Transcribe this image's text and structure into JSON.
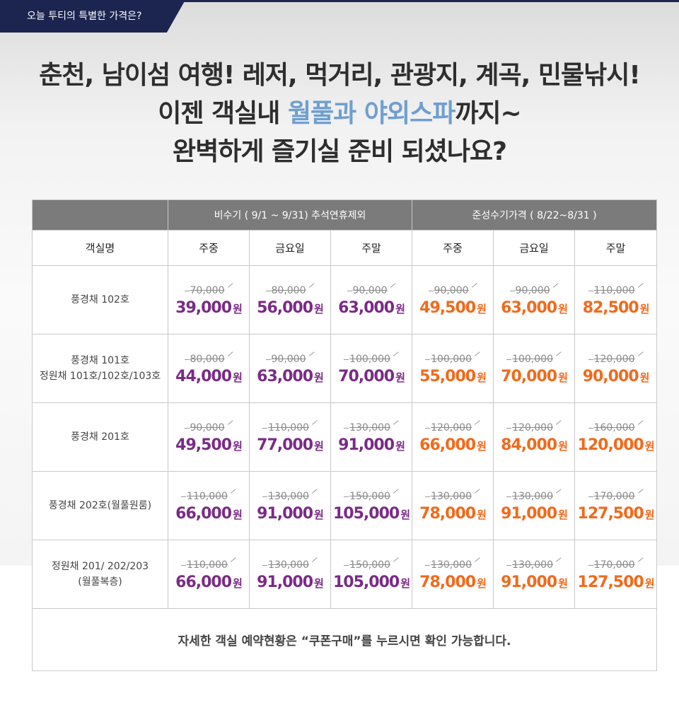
{
  "tag": {
    "label": "오늘 투티의 특별한 가격은?"
  },
  "headline": {
    "line1": "춘천, 남이섬 여행! 레저, 먹거리, 관광지, 계곡, 민물낚시!",
    "line2_pre": "이젠 객실내 ",
    "line2_highlight": "월풀과 야외스파",
    "line2_post": "까지~",
    "line3": "완벽하게 즐기실 준비 되셨나요?"
  },
  "colors": {
    "navy": "#1b2550",
    "highlight": "#6f9fd0",
    "offseason": "#7a2b86",
    "semiseason": "#f16a1c",
    "header_bg": "#7b7b7b"
  },
  "table": {
    "group_headers": [
      "비수기 ( 9/1 ~ 9/31) 추석연휴제외",
      "준성수기가격 ( 8/22~8/31 )"
    ],
    "columns": [
      "객실명",
      "주중",
      "금요일",
      "주말",
      "주중",
      "금요일",
      "주말"
    ],
    "won": "원",
    "rows": [
      {
        "room": [
          "풍경채 102호"
        ],
        "old": [
          "70,000",
          "80,000",
          "90,000",
          "90,000",
          "90,000",
          "110,000"
        ],
        "new": [
          "39,000",
          "56,000",
          "63,000",
          "49,500",
          "63,000",
          "82,500"
        ]
      },
      {
        "room": [
          "풍경채 101호",
          "정원채 101호/102호/103호"
        ],
        "old": [
          "80,000",
          "90,000",
          "100,000",
          "100,000",
          "100,000",
          "120,000"
        ],
        "new": [
          "44,000",
          "63,000",
          "70,000",
          "55,000",
          "70,000",
          "90,000"
        ]
      },
      {
        "room": [
          "풍경채 201호"
        ],
        "old": [
          "90,000",
          "110,000",
          "130,000",
          "120,000",
          "120,000",
          "160,000"
        ],
        "new": [
          "49,500",
          "77,000",
          "91,000",
          "66,000",
          "84,000",
          "120,000"
        ]
      },
      {
        "room": [
          "풍경채 202호(월풀원룸)"
        ],
        "old": [
          "110,000",
          "130,000",
          "150,000",
          "130,000",
          "130,000",
          "170,000"
        ],
        "new": [
          "66,000",
          "91,000",
          "105,000",
          "78,000",
          "91,000",
          "127,500"
        ]
      },
      {
        "room": [
          "정원채 201/ 202/203",
          "(월풀복층)"
        ],
        "old": [
          "110,000",
          "130,000",
          "150,000",
          "130,000",
          "130,000",
          "170,000"
        ],
        "new": [
          "66,000",
          "91,000",
          "105,000",
          "78,000",
          "91,000",
          "127,500"
        ]
      }
    ],
    "footer": "자세한 객실 예약현황은 “쿠폰구매”를 누르시면 확인 가능합니다."
  }
}
